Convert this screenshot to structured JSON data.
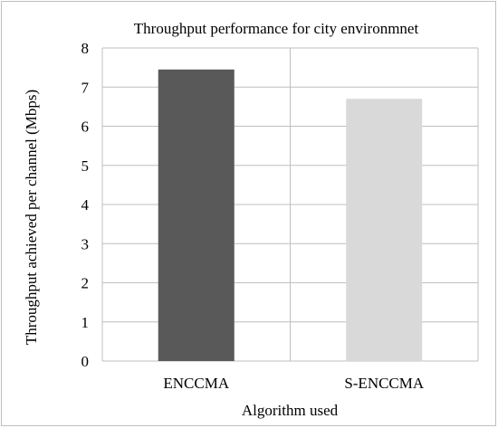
{
  "chart_data": {
    "type": "bar",
    "title": "Throughput performance for city environmnet",
    "xlabel": "Algorithm used",
    "ylabel": "Throughput achieved per channel (Mbps)",
    "categories": [
      "ENCCMA",
      "S-ENCCMA"
    ],
    "values": [
      7.45,
      6.7
    ],
    "bar_colors": [
      "#595959",
      "#d9d9d9"
    ],
    "ylim": [
      0,
      8
    ],
    "yticks": [
      "0",
      "1",
      "2",
      "3",
      "4",
      "5",
      "6",
      "7",
      "8"
    ],
    "grid": true,
    "legend": "none"
  }
}
